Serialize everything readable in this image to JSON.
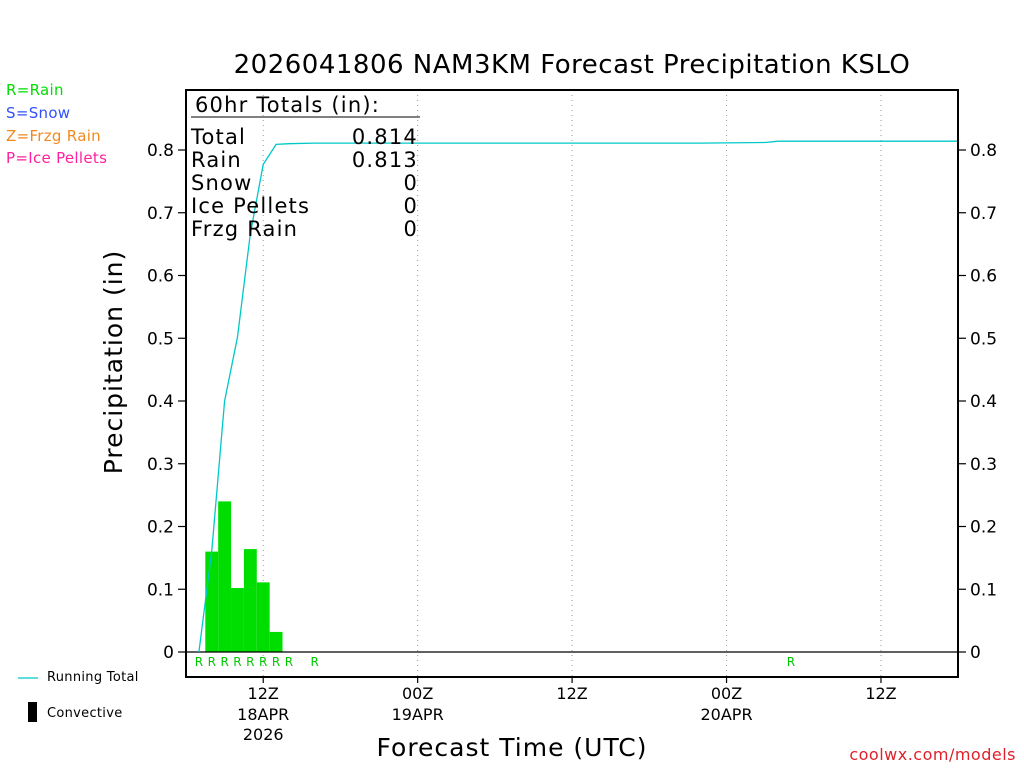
{
  "chart_data": {
    "type": "bar",
    "title": "2026041806 NAM3KM Forecast Precipitation KSLO",
    "xlabel": "Forecast Time (UTC)",
    "ylabel": "Precipitation (in)",
    "ylim": [
      -0.04,
      0.895
    ],
    "yticks": [
      0,
      0.1,
      0.2,
      0.3,
      0.4,
      0.5,
      0.6,
      0.7,
      0.8
    ],
    "ytick_labels": [
      "0",
      "0.1",
      "0.2",
      "0.3",
      "0.4",
      "0.5",
      "0.6",
      "0.7",
      "0.8"
    ],
    "xlim_hours": [
      0,
      60
    ],
    "x_ticks": [
      {
        "hour": 6,
        "line1": "12Z",
        "line2": "18APR",
        "line3": "2026"
      },
      {
        "hour": 18,
        "line1": "00Z",
        "line2": "19APR",
        "line3": ""
      },
      {
        "hour": 30,
        "line1": "12Z",
        "line2": "",
        "line3": ""
      },
      {
        "hour": 42,
        "line1": "00Z",
        "line2": "20APR",
        "line3": ""
      },
      {
        "hour": 54,
        "line1": "12Z",
        "line2": "",
        "line3": ""
      }
    ],
    "bars": {
      "name": "Rain",
      "color": "#00dd00",
      "hour_start": [
        1.5,
        2.5,
        3.5,
        4.5,
        5.5,
        6.5
      ],
      "values": [
        0.16,
        0.24,
        0.102,
        0.164,
        0.111,
        0.032
      ]
    },
    "running_total": {
      "name": "Running Total",
      "color": "#00c8c8",
      "x": [
        1,
        2,
        3,
        4,
        5,
        6,
        7,
        8,
        10,
        20,
        30,
        40,
        45,
        46,
        50,
        60
      ],
      "y": [
        0.0,
        0.16,
        0.4,
        0.502,
        0.666,
        0.777,
        0.809,
        0.81,
        0.811,
        0.811,
        0.811,
        0.811,
        0.812,
        0.814,
        0.814,
        0.814
      ]
    },
    "ptype_markers": {
      "color": "#00c800",
      "hours": [
        1,
        2,
        3,
        4,
        5,
        6,
        7,
        8,
        10,
        47
      ],
      "labels": [
        "R",
        "R",
        "R",
        "R",
        "R",
        "R",
        "R",
        "R",
        "R",
        "R"
      ]
    },
    "totals_box": {
      "header": "60hr Totals (in):",
      "rows": [
        {
          "label": "Total",
          "value": "0.814"
        },
        {
          "label": "Rain",
          "value": "0.813"
        },
        {
          "label": "Snow",
          "value": "0"
        },
        {
          "label": "Ice Pellets",
          "value": "0"
        },
        {
          "label": "Frzg Rain",
          "value": "0"
        }
      ]
    },
    "bottom_legend": {
      "running_total": "Running Total",
      "convective": "Convective"
    }
  },
  "legend": [
    {
      "text": "R=Rain",
      "color": "#00dd00"
    },
    {
      "text": "S=Snow",
      "color": "#3050ff"
    },
    {
      "text": "Z=Frzg Rain",
      "color": "#f08a20"
    },
    {
      "text": "P=Ice Pellets",
      "color": "#ff20a0"
    }
  ],
  "watermark": "coolwx.com/models"
}
